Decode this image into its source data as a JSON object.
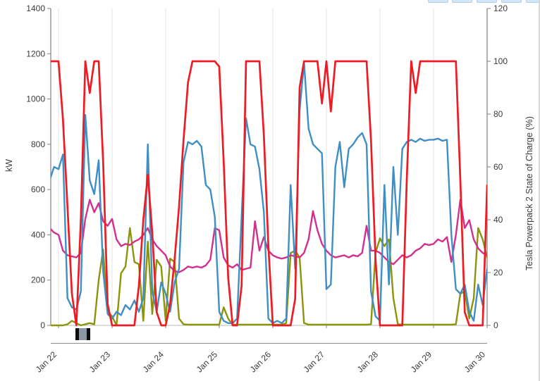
{
  "chart_data": {
    "type": "line",
    "title": "",
    "legend": "none",
    "grid": "vertical-day-gridlines",
    "x_axis": {
      "tick_labels": [
        "Jan 22",
        "Jan 23",
        "Jan 24",
        "Jan 25",
        "Jan 26",
        "Jan 27",
        "Jan 28",
        "Jan 29",
        "Jan 30"
      ]
    },
    "left_axis": {
      "label": "kW",
      "min": 0,
      "max": 1400,
      "ticks": [
        0,
        200,
        400,
        600,
        800,
        1000,
        1200,
        1400
      ]
    },
    "right_axis": {
      "label": "Tesla Powerpack 2 State of Charge (%)",
      "min": 0,
      "max": 120,
      "ticks": [
        0,
        20,
        40,
        60,
        80,
        100,
        120
      ]
    },
    "sampling": {
      "start_hour": -4,
      "step_hours": 2,
      "hours_per_day": 24
    },
    "series": [
      {
        "name": "olive",
        "axis": "left",
        "unit": "kW",
        "color": "#8c940b",
        "values": [
          0,
          0,
          0,
          0,
          5,
          20,
          10,
          0,
          5,
          10,
          5,
          200,
          335,
          60,
          40,
          0,
          230,
          260,
          430,
          280,
          270,
          20,
          370,
          50,
          290,
          260,
          20,
          295,
          280,
          30,
          5,
          3,
          3,
          3,
          3,
          3,
          3,
          3,
          3,
          80,
          30,
          3,
          3,
          3,
          3,
          3,
          3,
          3,
          3,
          3,
          3,
          3,
          3,
          10,
          320,
          330,
          300,
          10,
          3,
          3,
          3,
          3,
          3,
          3,
          3,
          3,
          3,
          3,
          3,
          3,
          3,
          3,
          5,
          320,
          385,
          350,
          380,
          120,
          5,
          3,
          3,
          3,
          3,
          3,
          3,
          3,
          3,
          3,
          3,
          3,
          3,
          5,
          140,
          150,
          30,
          120,
          430,
          380,
          300
        ]
      },
      {
        "name": "magenta",
        "axis": "left",
        "unit": "kW",
        "color": "#d2308f",
        "values": [
          430,
          410,
          400,
          330,
          310,
          305,
          300,
          320,
          470,
          555,
          500,
          540,
          460,
          440,
          470,
          380,
          350,
          360,
          355,
          370,
          380,
          400,
          430,
          380,
          350,
          330,
          310,
          260,
          240,
          235,
          245,
          260,
          255,
          260,
          255,
          265,
          290,
          430,
          420,
          300,
          265,
          255,
          270,
          245,
          250,
          255,
          460,
          330,
          390,
          330,
          310,
          300,
          295,
          300,
          310,
          305,
          300,
          320,
          380,
          505,
          420,
          360,
          330,
          310,
          300,
          305,
          310,
          300,
          310,
          305,
          320,
          440,
          330,
          330,
          320,
          300,
          280,
          270,
          290,
          310,
          300,
          310,
          330,
          340,
          360,
          355,
          360,
          380,
          370,
          390,
          280,
          400,
          555,
          430,
          465,
          380,
          340,
          320,
          310
        ]
      },
      {
        "name": "blue",
        "axis": "left",
        "unit": "kW",
        "color": "#3f8ec4",
        "values": [
          640,
          700,
          690,
          755,
          120,
          80,
          70,
          150,
          930,
          640,
          580,
          730,
          240,
          50,
          30,
          60,
          45,
          90,
          70,
          110,
          60,
          120,
          800,
          150,
          60,
          190,
          140,
          60,
          190,
          250,
          720,
          810,
          800,
          815,
          790,
          620,
          600,
          480,
          60,
          20,
          10,
          10,
          30,
          480,
          915,
          800,
          790,
          690,
          500,
          30,
          10,
          20,
          10,
          30,
          620,
          250,
          950,
          1160,
          870,
          800,
          780,
          760,
          160,
          180,
          700,
          810,
          610,
          780,
          800,
          830,
          850,
          800,
          150,
          40,
          20,
          620,
          180,
          700,
          400,
          780,
          810,
          820,
          810,
          825,
          815,
          820,
          820,
          825,
          815,
          820,
          400,
          160,
          140,
          180,
          60,
          20,
          180,
          90,
          250
        ]
      },
      {
        "name": "red-state-of-charge",
        "axis": "right",
        "unit": "%",
        "color": "#ed1c24",
        "values": [
          100,
          100,
          100,
          78,
          45,
          12,
          0,
          40,
          100,
          88,
          100,
          100,
          62,
          8,
          0,
          0,
          0,
          0,
          0,
          0,
          15,
          40,
          57,
          35,
          5,
          0,
          0,
          8,
          25,
          45,
          70,
          92,
          100,
          100,
          100,
          100,
          100,
          100,
          98,
          62,
          18,
          0,
          0,
          15,
          100,
          100,
          100,
          100,
          72,
          30,
          0,
          0,
          0,
          0,
          0,
          10,
          90,
          100,
          100,
          100,
          100,
          84,
          100,
          81,
          100,
          100,
          100,
          100,
          100,
          100,
          100,
          100,
          70,
          25,
          0,
          0,
          0,
          0,
          0,
          0,
          55,
          100,
          88,
          100,
          100,
          100,
          100,
          100,
          100,
          100,
          100,
          100,
          55,
          5,
          0,
          0,
          0,
          0,
          53
        ]
      }
    ]
  },
  "ui": {
    "axis_line_color": "#808080",
    "gridline_color": "#e4e4e4",
    "tick_label_color": "#3b3b3b"
  }
}
